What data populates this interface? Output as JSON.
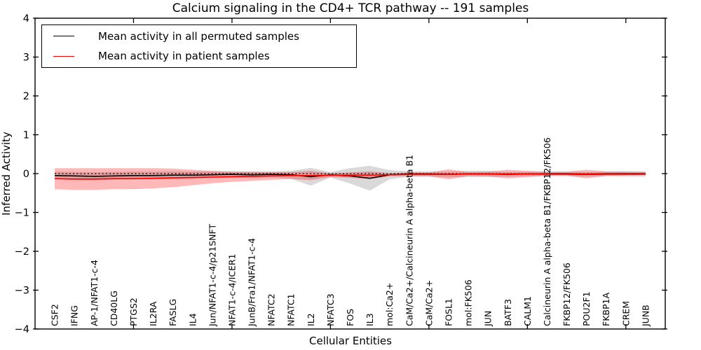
{
  "figure": {
    "title": "Calcium signaling in the CD4+ TCR pathway -- 191 samples",
    "xlabel": "Cellular Entities",
    "ylabel": "Inferred Activity"
  },
  "chart_data": {
    "type": "line",
    "title": "Calcium signaling in the CD4+ TCR pathway -- 191 samples",
    "xlabel": "Cellular Entities",
    "ylabel": "Inferred Activity",
    "xlim": [
      0,
      32
    ],
    "ylim": [
      -4,
      4
    ],
    "yticks": [
      -4,
      -3,
      -2,
      -1,
      0,
      1,
      2,
      3,
      4
    ],
    "xticks": [
      5,
      10,
      15,
      20,
      25,
      30
    ],
    "grid": false,
    "legend_position": "upper left",
    "zero_reference_line": "dotted black at y=0 spanning the data range",
    "categories": [
      "CSF2",
      "IFNG",
      "AP-1/NFAT1-c-4",
      "CD40LG",
      "PTGS2",
      "IL2RA",
      "FASLG",
      "IL4",
      "Jun/NFAT1-c-4/p21SNFT",
      "NFAT1-c-4/ICER1",
      "JunB/Fra1/NFAT1-c-4",
      "NFATC2",
      "NFATC1",
      "IL2",
      "NFATC3",
      "FOS",
      "IL3",
      "mol:Ca2+",
      "CaM/Ca2+/Calcineurin A alpha-beta B1",
      "CaM/Ca2+",
      "FOSL1",
      "mol:FK506",
      "JUN",
      "BATF3",
      "CALM1",
      "Calcineurin A alpha-beta B1/FKBP12/FK506",
      "FKBP12/FK506",
      "POU2F1",
      "FKBP1A",
      "CREM",
      "JUNB"
    ],
    "series": [
      {
        "name": "Mean activity in all permuted samples",
        "color": "#000000",
        "band_color": "#808080",
        "band_opacity": 0.3,
        "values": [
          -0.05,
          -0.06,
          -0.07,
          -0.06,
          -0.05,
          -0.05,
          -0.04,
          -0.04,
          -0.03,
          -0.02,
          -0.03,
          -0.02,
          -0.03,
          -0.08,
          -0.03,
          -0.06,
          -0.12,
          -0.03,
          -0.01,
          -0.01,
          -0.02,
          -0.01,
          -0.01,
          -0.02,
          -0.01,
          -0.01,
          -0.01,
          -0.02,
          -0.01,
          -0.01,
          -0.01
        ],
        "band_halfwidth": [
          0.1,
          0.1,
          0.1,
          0.1,
          0.1,
          0.1,
          0.1,
          0.09,
          0.09,
          0.08,
          0.08,
          0.08,
          0.1,
          0.23,
          0.07,
          0.2,
          0.32,
          0.12,
          0.07,
          0.07,
          0.07,
          0.08,
          0.08,
          0.06,
          0.06,
          0.06,
          0.06,
          0.06,
          0.06,
          0.07,
          0.07
        ]
      },
      {
        "name": "Mean activity in patient samples",
        "color": "#ff0000",
        "band_color": "#ff0000",
        "band_opacity": 0.28,
        "values": [
          -0.13,
          -0.14,
          -0.14,
          -0.13,
          -0.13,
          -0.12,
          -0.11,
          -0.1,
          -0.09,
          -0.08,
          -0.07,
          -0.06,
          -0.05,
          -0.05,
          -0.04,
          -0.04,
          -0.04,
          -0.03,
          -0.02,
          -0.02,
          -0.02,
          -0.01,
          -0.01,
          -0.01,
          -0.01,
          0.0,
          0.0,
          -0.01,
          0.0,
          0.0,
          0.0
        ],
        "band_halfwidth": [
          0.27,
          0.28,
          0.28,
          0.27,
          0.27,
          0.26,
          0.24,
          0.2,
          0.16,
          0.13,
          0.12,
          0.1,
          0.09,
          0.12,
          0.05,
          0.07,
          0.1,
          0.04,
          0.05,
          0.05,
          0.13,
          0.05,
          0.06,
          0.11,
          0.08,
          0.05,
          0.05,
          0.11,
          0.06,
          0.05,
          0.04
        ]
      }
    ]
  }
}
